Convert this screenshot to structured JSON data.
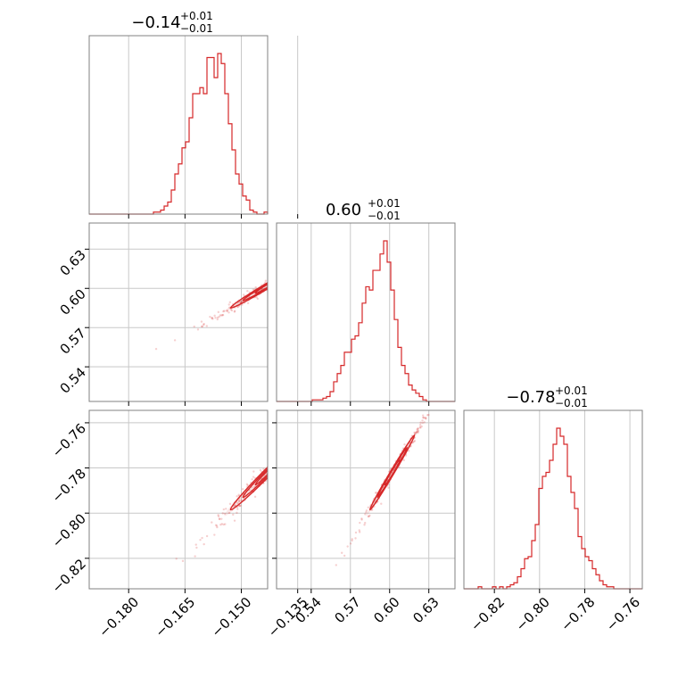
{
  "chart_data": {
    "type": "corner",
    "color": "#d62728",
    "grid": true,
    "parameters": [
      {
        "title_value": "−0.14",
        "title_plus": "+0.01",
        "title_minus": "−0.01",
        "range": [
          -0.1905,
          -0.143
        ],
        "ticks": [
          -0.18,
          -0.165,
          -0.15,
          -0.135
        ],
        "tick_labels": [
          "−0.180",
          "−0.165",
          "−0.150",
          "−0.135"
        ]
      },
      {
        "title_value": "0.60",
        "title_plus": "+0.01",
        "title_minus": "−0.01",
        "range": [
          0.5135,
          0.65
        ],
        "ticks": [
          0.54,
          0.57,
          0.6,
          0.63
        ],
        "tick_labels": [
          "0.54",
          "0.57",
          "0.60",
          "0.63"
        ]
      },
      {
        "title_value": "−0.78",
        "title_plus": "+0.01",
        "title_minus": "−0.01",
        "range": [
          -0.8335,
          -0.7545
        ],
        "ticks": [
          -0.82,
          -0.8,
          -0.78,
          -0.76
        ],
        "tick_labels": [
          "−0.82",
          "−0.80",
          "−0.78",
          "−0.76"
        ]
      }
    ],
    "hist1d": [
      {
        "bin_start": -0.1905,
        "bin_width": 0.00095,
        "counts": [
          0,
          0,
          0,
          0,
          0,
          0,
          0,
          0,
          0,
          0,
          0,
          0,
          0,
          0,
          0,
          0,
          0,
          0,
          1,
          1,
          2,
          4,
          6,
          12,
          20,
          25,
          33,
          36,
          48,
          60,
          60,
          63,
          60,
          78,
          78,
          68,
          80,
          75,
          60,
          45,
          32,
          20,
          15,
          9,
          7,
          2,
          1,
          0,
          0,
          1
        ]
      },
      {
        "bin_start": 0.5135,
        "bin_width": 0.00273,
        "counts": [
          0,
          0,
          0,
          0,
          0,
          0,
          0,
          0,
          0,
          0,
          1,
          1,
          1,
          2,
          3,
          6,
          12,
          17,
          22,
          30,
          30,
          38,
          40,
          48,
          60,
          70,
          68,
          80,
          80,
          90,
          98,
          85,
          68,
          50,
          33,
          22,
          17,
          10,
          7,
          5,
          3,
          1,
          0,
          0,
          0,
          0,
          0,
          0,
          0,
          0
        ]
      },
      {
        "bin_start": -0.8335,
        "bin_width": 0.00158,
        "counts": [
          0,
          0,
          0,
          0,
          1,
          0,
          0,
          0,
          1,
          0,
          1,
          0,
          1,
          2,
          3,
          6,
          10,
          15,
          16,
          24,
          32,
          50,
          56,
          58,
          64,
          72,
          80,
          76,
          72,
          56,
          48,
          40,
          26,
          20,
          16,
          14,
          10,
          7,
          4,
          2,
          1,
          1,
          0,
          0,
          0,
          0,
          0,
          0,
          0,
          0
        ]
      }
    ],
    "pairs": [
      {
        "row": 1,
        "col": 0,
        "mean": [
          -0.143,
          0.602
        ],
        "sd": [
          0.0055,
          0.0095
        ],
        "corr": 0.99
      },
      {
        "row": 2,
        "col": 0,
        "mean": [
          -0.143,
          -0.782
        ],
        "sd": [
          0.0055,
          0.0092
        ],
        "corr": 0.99
      },
      {
        "row": 2,
        "col": 1,
        "mean": [
          0.602,
          -0.782
        ],
        "sd": [
          0.0095,
          0.0092
        ],
        "corr": 0.995
      }
    ]
  }
}
